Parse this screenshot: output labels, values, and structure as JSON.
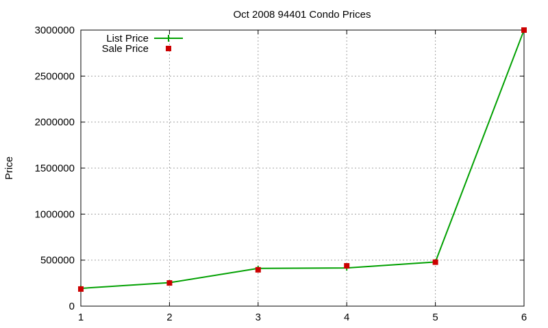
{
  "chart_data": {
    "type": "line",
    "title": "Oct 2008 94401 Condo Prices",
    "xlabel": "",
    "ylabel": "Price",
    "x": [
      1,
      2,
      3,
      4,
      5,
      6
    ],
    "xlim": [
      1,
      6
    ],
    "ylim": [
      0,
      3000000
    ],
    "x_ticks": [
      "1",
      "2",
      "3",
      "4",
      "5",
      "6"
    ],
    "y_ticks": [
      "0",
      "500000",
      "1000000",
      "1500000",
      "2000000",
      "2500000",
      "3000000"
    ],
    "grid": true,
    "legend_position": "top-left",
    "series": [
      {
        "name": "List Price",
        "style": "line+cross",
        "color": "#00a000",
        "values": [
          193000,
          255000,
          410000,
          415000,
          480000,
          3000000
        ]
      },
      {
        "name": "Sale Price",
        "style": "square-markers",
        "color": "#cc0000",
        "values": [
          186000,
          252000,
          395000,
          438000,
          478000,
          3000000
        ]
      }
    ]
  },
  "legend": {
    "items": [
      {
        "label": "List Price"
      },
      {
        "label": "Sale Price"
      }
    ]
  }
}
